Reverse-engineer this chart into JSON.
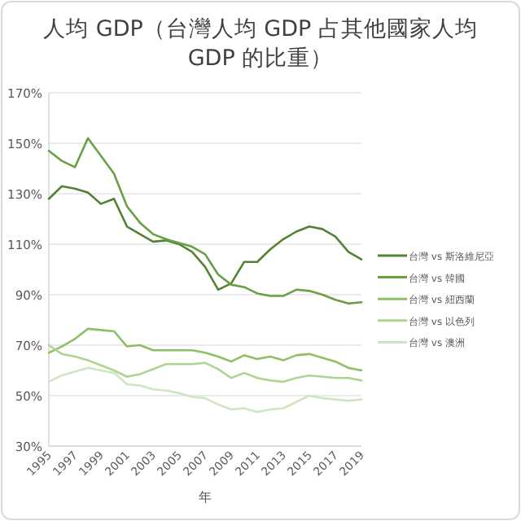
{
  "chart_data": {
    "type": "line",
    "title": "人均 GDP（台灣人均 GDP 占其他國家人均 GDP 的比重）",
    "xlabel": "年",
    "x": [
      1995,
      1996,
      1997,
      1998,
      1999,
      2000,
      2001,
      2002,
      2003,
      2004,
      2005,
      2006,
      2007,
      2008,
      2009,
      2010,
      2011,
      2012,
      2013,
      2014,
      2015,
      2016,
      2017,
      2018,
      2019
    ],
    "xlim": [
      1995,
      2019
    ],
    "xticks": [
      1995,
      1997,
      1999,
      2001,
      2003,
      2005,
      2007,
      2009,
      2011,
      2013,
      2015,
      2017,
      2019
    ],
    "ylim": [
      30,
      170
    ],
    "yticks": [
      {
        "value": 30,
        "label": "30%"
      },
      {
        "value": 50,
        "label": "50%"
      },
      {
        "value": 70,
        "label": "70%"
      },
      {
        "value": 90,
        "label": "90%"
      },
      {
        "value": 110,
        "label": "110%"
      },
      {
        "value": 130,
        "label": "130%"
      },
      {
        "value": 150,
        "label": "150%"
      },
      {
        "value": 170,
        "label": "170%"
      }
    ],
    "grid": "y",
    "legend": "right",
    "series": [
      {
        "name": "台灣 vs 斯洛維尼亞",
        "color": "#548235",
        "values": [
          128,
          133,
          132,
          130.5,
          126,
          128,
          117,
          114,
          111,
          111.5,
          110,
          107,
          101,
          92,
          94.5,
          103,
          103,
          108,
          112,
          115,
          117,
          116,
          113,
          107,
          104
        ]
      },
      {
        "name": "台灣 vs 韓國",
        "color": "#6a9f45",
        "values": [
          147,
          143,
          140.5,
          152,
          145,
          138,
          125,
          118.5,
          114,
          112,
          110.5,
          109,
          106,
          98,
          94,
          93,
          90.5,
          89.5,
          89.5,
          92,
          91.5,
          90,
          88,
          86.5,
          87
        ]
      },
      {
        "name": "台灣 vs 紐西蘭",
        "color": "#8cc068",
        "values": [
          67,
          69.5,
          72.5,
          76.5,
          76,
          75.5,
          69.5,
          70,
          68,
          68,
          68,
          68,
          67,
          65.5,
          63.5,
          66,
          64.5,
          65.5,
          64,
          66,
          66.5,
          65,
          63.5,
          61,
          60
        ]
      },
      {
        "name": "台灣 vs 以色列",
        "color": "#add591",
        "values": [
          70,
          66.5,
          65.5,
          64,
          62,
          60,
          57.5,
          58.5,
          60.5,
          62.5,
          62.5,
          62.5,
          63,
          60.5,
          57,
          59,
          57,
          56,
          55.5,
          57,
          58,
          57.5,
          57,
          57,
          56
        ]
      },
      {
        "name": "台灣 vs 澳洲",
        "color": "#cfe6c0",
        "values": [
          55.5,
          58,
          59.5,
          61,
          60,
          59,
          54.5,
          54,
          52.5,
          52,
          51,
          49.5,
          49,
          46.5,
          44.5,
          45,
          43.5,
          44.5,
          45,
          47.5,
          50,
          49,
          48.5,
          48,
          48.5
        ]
      }
    ]
  }
}
